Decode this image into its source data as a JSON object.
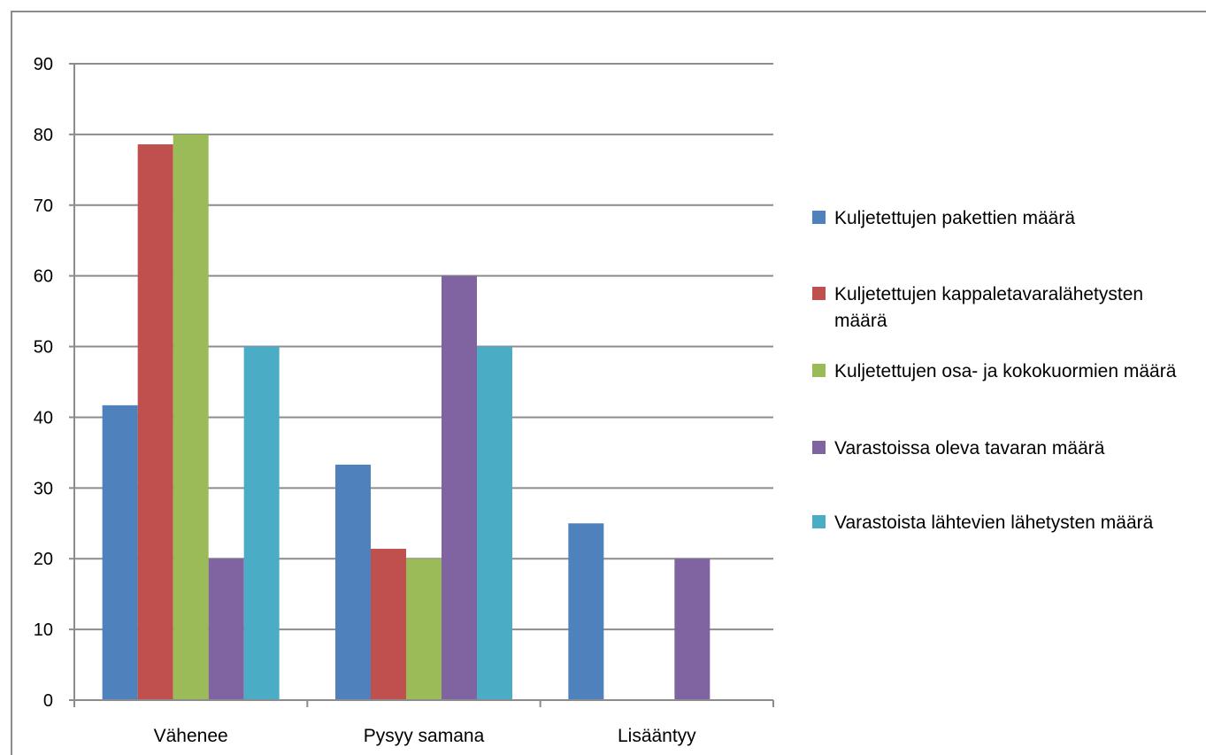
{
  "chart_data": {
    "type": "bar",
    "title": "",
    "xlabel": "",
    "ylabel": "",
    "ylim": [
      0,
      90
    ],
    "yticks": [
      0,
      10,
      20,
      30,
      40,
      50,
      60,
      70,
      80,
      90
    ],
    "grid": true,
    "legend_position": "right",
    "categories": [
      "Vähenee",
      "Pysyy samana",
      "Lisääntyy"
    ],
    "series": [
      {
        "name": "Kuljetettujen pakettien määrä",
        "color": "#4F81BD",
        "values": [
          41.7,
          33.3,
          25
        ]
      },
      {
        "name": "Kuljetettujen kappaletavaralähetysten määrä",
        "color": "#C0504D",
        "values": [
          78.6,
          21.4,
          0
        ]
      },
      {
        "name": "Kuljetettujen osa- ja kokokuormien määrä",
        "color": "#9BBB59",
        "values": [
          80,
          20,
          0
        ]
      },
      {
        "name": "Varastoissa oleva tavaran määrä",
        "color": "#8064A2",
        "values": [
          20,
          60,
          20
        ]
      },
      {
        "name": "Varastoista lähtevien lähetysten määrä",
        "color": "#4BACC6",
        "values": [
          50,
          50,
          0
        ]
      }
    ]
  }
}
